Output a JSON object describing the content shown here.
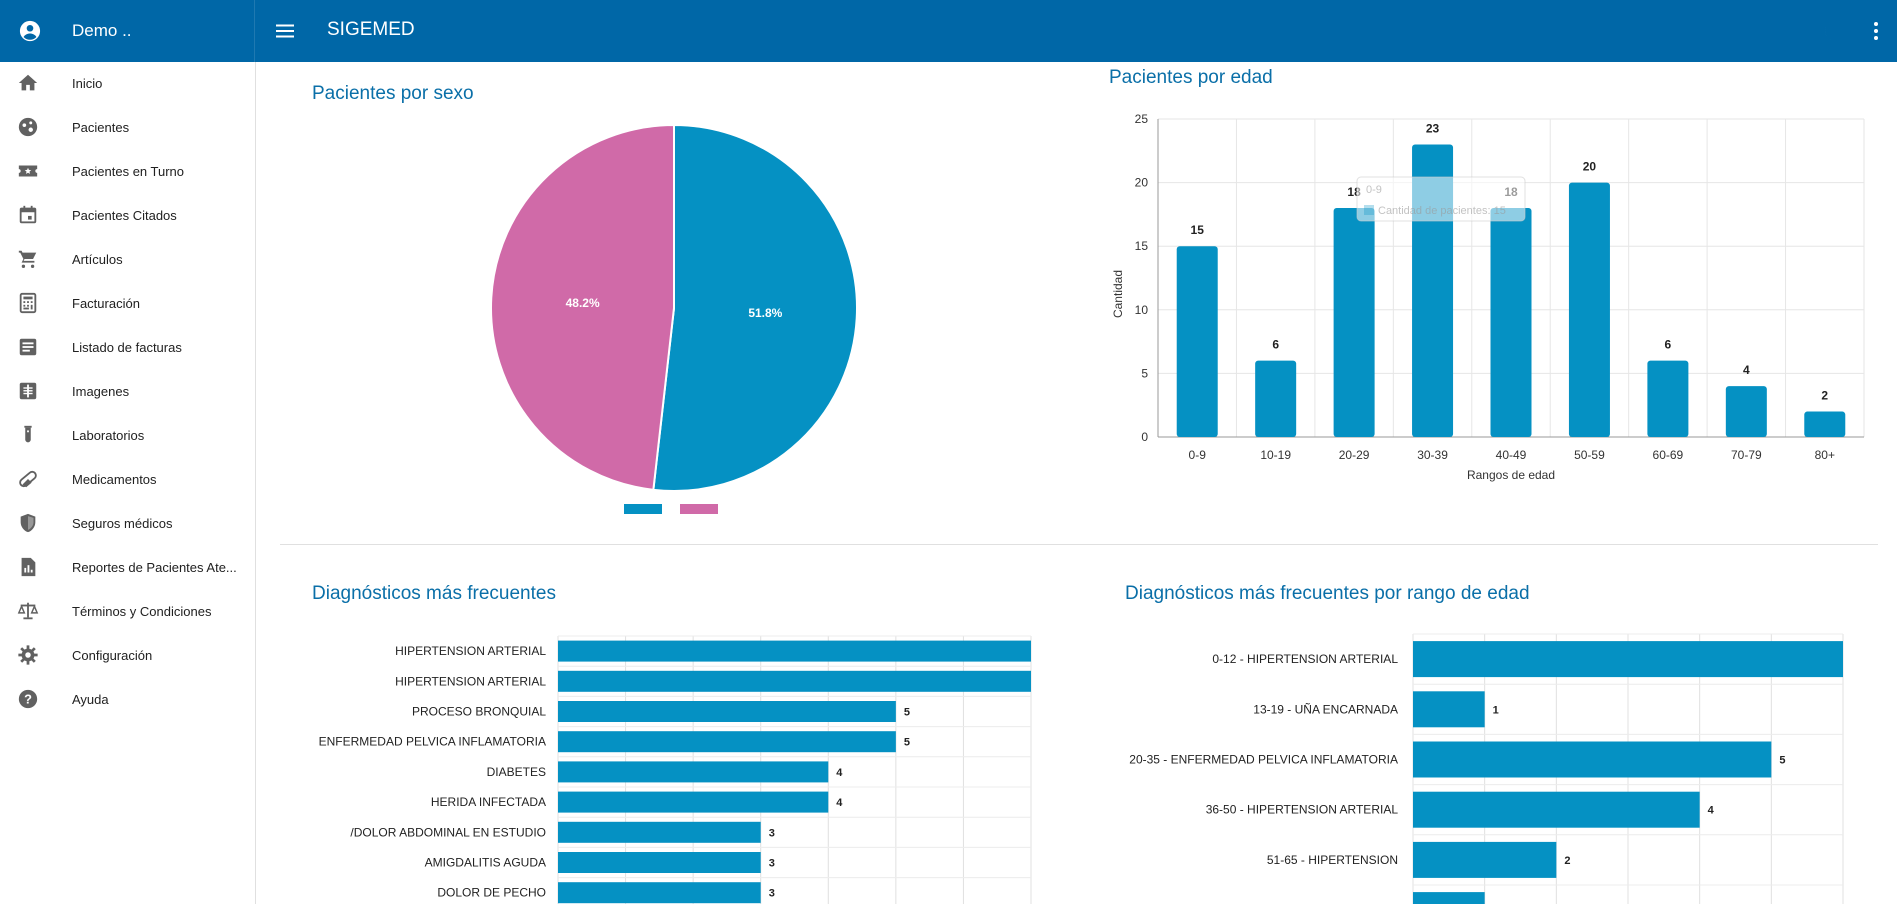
{
  "header": {
    "user_name": "Demo ..",
    "app_title": "SIGEMED"
  },
  "sidebar": {
    "items": [
      {
        "label": "Inicio",
        "icon": "home-icon"
      },
      {
        "label": "Pacientes",
        "icon": "patients-icon"
      },
      {
        "label": "Pacientes en Turno",
        "icon": "ticket-star-icon"
      },
      {
        "label": "Pacientes Citados",
        "icon": "calendar-icon"
      },
      {
        "label": "Artículos",
        "icon": "cart-icon"
      },
      {
        "label": "Facturación",
        "icon": "calculator-icon"
      },
      {
        "label": "Listado de facturas",
        "icon": "list-icon"
      },
      {
        "label": "Imagenes",
        "icon": "xray-icon"
      },
      {
        "label": "Laboratorios",
        "icon": "test-tube-icon"
      },
      {
        "label": "Medicamentos",
        "icon": "pill-icon"
      },
      {
        "label": "Seguros médicos",
        "icon": "shield-icon"
      },
      {
        "label": "Reportes de Pacientes Ate...",
        "icon": "report-icon"
      },
      {
        "label": "Términos y Condiciones",
        "icon": "scale-icon"
      },
      {
        "label": "Configuración",
        "icon": "gear-icon"
      },
      {
        "label": "Ayuda",
        "icon": "help-icon"
      }
    ]
  },
  "colors": {
    "header": "#0067a7",
    "bar": "#0591c3",
    "pie_pink": "#d06aa8",
    "title": "#0a6fa8"
  },
  "cards": {
    "sexo_title": "Pacientes por sexo",
    "edad_title": "Pacientes por edad",
    "diag_title": "Diagnósticos más frecuentes",
    "diag_rango_title": "Diagnósticos más frecuentes por rango de edad"
  },
  "chart_data": [
    {
      "type": "pie",
      "title": "Pacientes por sexo",
      "slices": [
        {
          "label": "51.8%",
          "value": 51.8,
          "color": "#0591c3"
        },
        {
          "label": "48.2%",
          "value": 48.2,
          "color": "#d06aa8"
        }
      ]
    },
    {
      "type": "bar",
      "title": "Pacientes por edad",
      "xlabel": "Rangos de edad",
      "ylabel": "Cantidad",
      "categories": [
        "0-9",
        "10-19",
        "20-29",
        "30-39",
        "40-49",
        "50-59",
        "60-69",
        "70-79",
        "80+"
      ],
      "values": [
        15,
        6,
        18,
        23,
        18,
        20,
        6,
        4,
        2
      ],
      "ylim": [
        0,
        25
      ],
      "yticks": [
        0,
        5,
        10,
        15,
        20,
        25
      ],
      "tooltip": {
        "title": "0-9",
        "line": "Cantidad de pacientes: 15"
      }
    },
    {
      "type": "bar",
      "orientation": "horizontal",
      "title": "Diagnósticos más frecuentes",
      "categories": [
        "HIPERTENSION ARTERIAL",
        "HIPERTENSION ARTERIAL",
        "PROCESO BRONQUIAL",
        "ENFERMEDAD PELVICA INFLAMATORIA",
        "DIABETES",
        "HERIDA INFECTADA",
        "/DOLOR ABDOMINAL EN ESTUDIO",
        "AMIGDALITIS AGUDA",
        "DOLOR DE PECHO"
      ],
      "values": [
        7,
        7,
        5,
        5,
        4,
        4,
        3,
        3,
        3
      ],
      "value_labels": [
        "",
        "",
        "5",
        "5",
        "4",
        "4",
        "3",
        "3",
        "3"
      ],
      "xlim": [
        0,
        7
      ]
    },
    {
      "type": "bar",
      "orientation": "horizontal",
      "title": "Diagnósticos más frecuentes por rango de edad",
      "categories": [
        "0-12 - HIPERTENSION ARTERIAL",
        "13-19 - UÑA ENCARNADA",
        "20-35 - ENFERMEDAD PELVICA INFLAMATORIA",
        "36-50 - HIPERTENSION ARTERIAL",
        "51-65 - HIPERTENSION",
        ""
      ],
      "values": [
        6,
        1,
        5,
        4,
        2,
        1
      ],
      "value_labels": [
        "",
        "1",
        "5",
        "4",
        "2",
        ""
      ],
      "xlim": [
        0,
        6
      ]
    }
  ]
}
